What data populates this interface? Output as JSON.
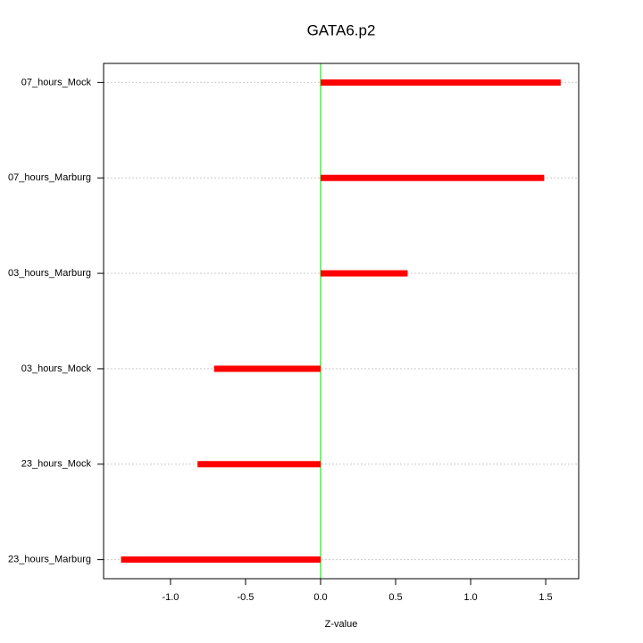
{
  "chart_data": {
    "type": "hbar",
    "title": "GATA6.p2",
    "xlabel": "Z-value",
    "categories": [
      "07_hours_Mock",
      "07_hours_Marburg",
      "03_hours_Marburg",
      "03_hours_Mock",
      "23_hours_Mock",
      "23_hours_Marburg"
    ],
    "values": [
      1.6,
      1.49,
      0.58,
      -0.71,
      -0.82,
      -1.33
    ],
    "color": "#ff0000",
    "zero_line_color": "#00dd00",
    "xlim": [
      -1.446,
      1.72
    ],
    "xticks": [
      {
        "value": -1,
        "label": "-1.0"
      },
      -0.5,
      {
        "value": 0,
        "label": "0.0"
      },
      0.5,
      {
        "value": 1,
        "label": "1.0"
      },
      1.5
    ],
    "grid": true
  }
}
